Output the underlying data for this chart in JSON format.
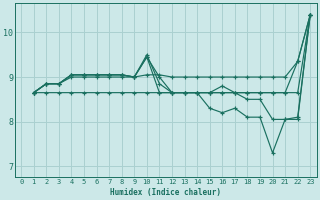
{
  "xlabel": "Humidex (Indice chaleur)",
  "background_color": "#cce8e8",
  "grid_color": "#aad0d0",
  "line_color": "#1a7060",
  "xlim": [
    -0.5,
    23.5
  ],
  "ylim": [
    6.75,
    10.65
  ],
  "xticks": [
    0,
    1,
    2,
    3,
    4,
    5,
    6,
    7,
    8,
    9,
    10,
    11,
    12,
    13,
    14,
    15,
    16,
    17,
    18,
    19,
    20,
    21,
    22,
    23
  ],
  "yticks": [
    7,
    8,
    9,
    10
  ],
  "lines": [
    {
      "x": [
        1,
        2,
        3,
        4,
        5,
        6,
        7,
        8,
        9,
        10,
        11,
        12,
        13,
        14,
        15,
        16,
        17,
        18,
        19,
        20,
        21,
        22,
        23
      ],
      "y": [
        8.65,
        8.65,
        8.65,
        8.65,
        8.65,
        8.65,
        8.65,
        8.65,
        8.65,
        8.65,
        8.65,
        8.65,
        8.65,
        8.65,
        8.65,
        8.65,
        8.65,
        8.65,
        8.65,
        8.65,
        8.65,
        8.65,
        10.4
      ]
    },
    {
      "x": [
        1,
        2,
        3,
        4,
        5,
        6,
        7,
        8,
        9,
        10,
        11,
        12,
        13,
        14,
        15,
        16,
        17,
        18,
        19,
        20,
        21,
        22,
        23
      ],
      "y": [
        8.65,
        8.85,
        8.85,
        9.0,
        9.0,
        9.0,
        9.0,
        9.0,
        9.0,
        9.05,
        9.05,
        9.0,
        9.0,
        9.0,
        9.0,
        9.0,
        9.0,
        9.0,
        9.0,
        9.0,
        9.0,
        9.35,
        10.4
      ]
    },
    {
      "x": [
        1,
        2,
        3,
        4,
        5,
        6,
        7,
        8,
        9,
        10,
        11,
        12,
        13,
        14,
        15,
        16,
        17,
        18,
        19,
        20,
        21,
        22,
        23
      ],
      "y": [
        8.65,
        8.85,
        8.85,
        9.05,
        9.05,
        9.05,
        9.05,
        9.05,
        9.0,
        9.5,
        8.85,
        8.65,
        8.65,
        8.65,
        8.65,
        8.65,
        8.65,
        8.65,
        8.65,
        8.65,
        8.65,
        9.35,
        10.4
      ]
    },
    {
      "x": [
        1,
        2,
        3,
        4,
        5,
        6,
        7,
        8,
        9,
        10,
        11,
        12,
        13,
        14,
        15,
        16,
        17,
        18,
        19,
        20,
        21,
        22,
        23
      ],
      "y": [
        8.65,
        8.85,
        8.85,
        9.05,
        9.05,
        9.05,
        9.05,
        9.05,
        9.0,
        9.45,
        9.0,
        8.65,
        8.65,
        8.65,
        8.65,
        8.8,
        8.65,
        8.5,
        8.5,
        8.05,
        8.05,
        8.1,
        10.4
      ]
    },
    {
      "x": [
        1,
        2,
        3,
        4,
        5,
        6,
        7,
        8,
        9,
        10,
        11,
        12,
        13,
        14,
        15,
        16,
        17,
        18,
        19,
        20,
        21,
        22,
        23
      ],
      "y": [
        8.65,
        8.85,
        8.85,
        9.05,
        9.05,
        9.05,
        9.05,
        9.05,
        9.0,
        9.45,
        8.65,
        8.65,
        8.65,
        8.65,
        8.3,
        8.2,
        8.3,
        8.1,
        8.1,
        7.3,
        8.05,
        8.05,
        10.4
      ]
    }
  ]
}
